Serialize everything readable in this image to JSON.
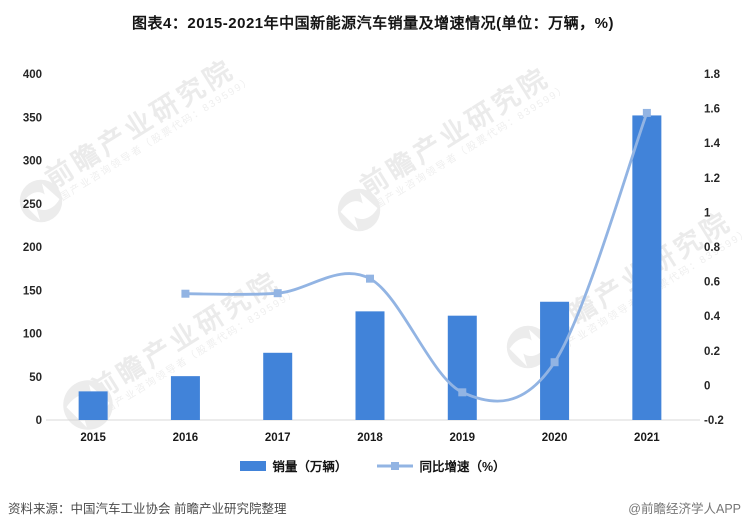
{
  "header": {
    "title": "图表4：2015-2021年中国新能源汽车销量及增速情况(单位：万辆，%)"
  },
  "chart_data": {
    "type": "combo_bar_line",
    "title": "图表4：2015-2021年中国新能源汽车销量及增速情况(单位：万辆，%)",
    "categories": [
      "2015",
      "2016",
      "2017",
      "2018",
      "2019",
      "2020",
      "2021"
    ],
    "series": [
      {
        "name": "销量（万辆）",
        "type": "bar",
        "axis": "left",
        "values": [
          33.1,
          50.7,
          77.7,
          125.6,
          120.6,
          136.7,
          352.1
        ],
        "color": "#4183d9"
      },
      {
        "name": "同比增速（%）",
        "type": "line",
        "axis": "right",
        "values": [
          null,
          0.53,
          0.533,
          0.617,
          -0.04,
          0.134,
          1.575
        ],
        "color": "#92b4e3"
      }
    ],
    "axes": {
      "left": {
        "min": 0,
        "max": 400,
        "ticks": [
          "400",
          "350",
          "300",
          "250",
          "200",
          "150",
          "100",
          "50",
          "0"
        ]
      },
      "right": {
        "min": -0.2,
        "max": 1.8,
        "ticks": [
          "1.8",
          "1.6",
          "1.4",
          "1.2",
          "1",
          "0.8",
          "0.6",
          "0.4",
          "0.2",
          "0",
          "-0.2"
        ]
      }
    },
    "grid": false,
    "legend_position": "bottom"
  },
  "watermark": {
    "main": "前瞻产业研究院",
    "sub": "中国产业咨询领导者（股票代码：839599）"
  },
  "footer": {
    "source": "资料来源：中国汽车工业协会 前瞻产业研究院整理",
    "credit": "@前瞻经济学人APP"
  },
  "colors": {
    "bar": "#4183d9",
    "line": "#92b4e3",
    "axis_line": "#d9d9d9",
    "tick_text": "#262626",
    "watermark": "#ebebeb"
  }
}
